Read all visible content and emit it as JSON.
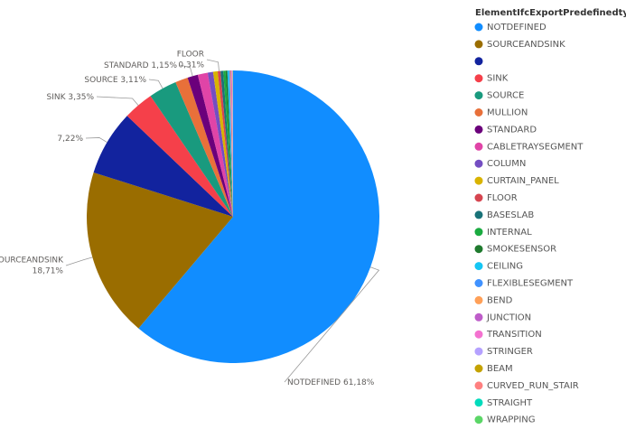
{
  "chart_data": {
    "type": "pie",
    "legend_title": "ElementIfcExportPredefinedtype",
    "categories": [
      "NOTDEFINED",
      "SOURCEANDSINK",
      null,
      "SINK",
      "SOURCE",
      "MULLION",
      "STANDARD",
      "CABLETRAYSEGMENT",
      "COLUMN",
      "CURTAIN_PANEL",
      "FLOOR",
      "BASESLAB",
      "INTERNAL",
      "SMOKESENSOR",
      "CEILING",
      "FLEXIBLESEGMENT",
      "BEND",
      "JUNCTION",
      "TRANSITION",
      "STRINGER",
      "BEAM",
      "CURVED_RUN_STAIR",
      "STRAIGHT",
      "WRAPPING"
    ],
    "values": [
      61.18,
      18.71,
      7.22,
      3.35,
      3.11,
      1.4,
      1.15,
      1.1,
      0.6,
      0.5,
      0.31,
      0.3,
      0.25,
      0.2,
      0.15,
      0.12,
      0.1,
      0.08,
      0.06,
      0.04,
      0.03,
      0.02,
      0.01,
      0.01
    ],
    "value_labels": [
      "61,18%",
      "18,71%",
      "7,22%",
      "3,35%",
      "3,11%",
      null,
      "1,15%",
      null,
      null,
      null,
      "0,31%",
      null,
      null,
      null,
      null,
      null,
      null,
      null,
      null,
      null,
      null,
      null,
      null,
      null
    ],
    "colors": [
      "#118dff",
      "#9a6d00",
      "#12239e",
      "#f5404a",
      "#199a7e",
      "#e8703a",
      "#6b007b",
      "#e044a7",
      "#744ec2",
      "#d9b300",
      "#d64550",
      "#197278",
      "#1aab40",
      "#1f7a2e",
      "#15c6f4",
      "#4092ff",
      "#ffa058",
      "#be5dc9",
      "#f472d0",
      "#b5a1ff",
      "#c4a200",
      "#ff8080",
      "#00dbbc",
      "#5bd667"
    ],
    "legend_position": "right"
  }
}
